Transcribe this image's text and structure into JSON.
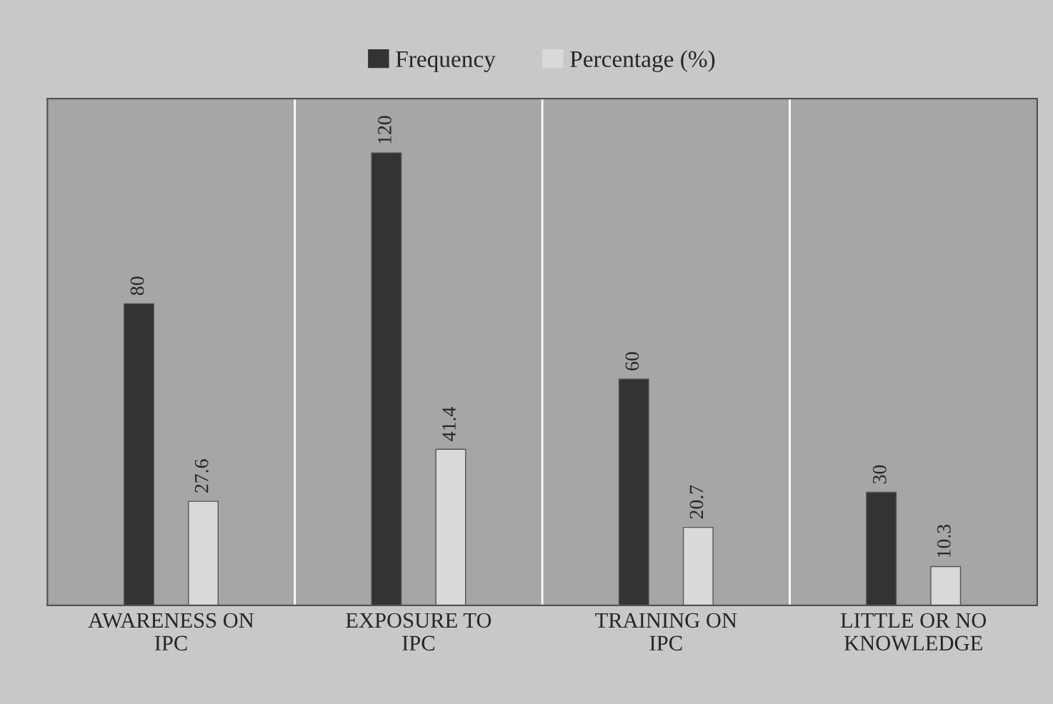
{
  "chart_data": {
    "type": "bar",
    "categories": [
      "AWARENESS ON IPC",
      "EXPOSURE TO IPC",
      "TRAINING ON IPC",
      "LITTLE OR NO KNOWLEDGE"
    ],
    "series": [
      {
        "name": "Frequency",
        "color": "#333333",
        "values": [
          80,
          120,
          60,
          30
        ]
      },
      {
        "name": "Percentage (%)",
        "color": "#d9d9d9",
        "values": [
          27.6,
          41.4,
          20.7,
          10.3
        ]
      }
    ],
    "data_labels": true,
    "legend": "top",
    "grid": "x",
    "tick_labels": "x"
  }
}
